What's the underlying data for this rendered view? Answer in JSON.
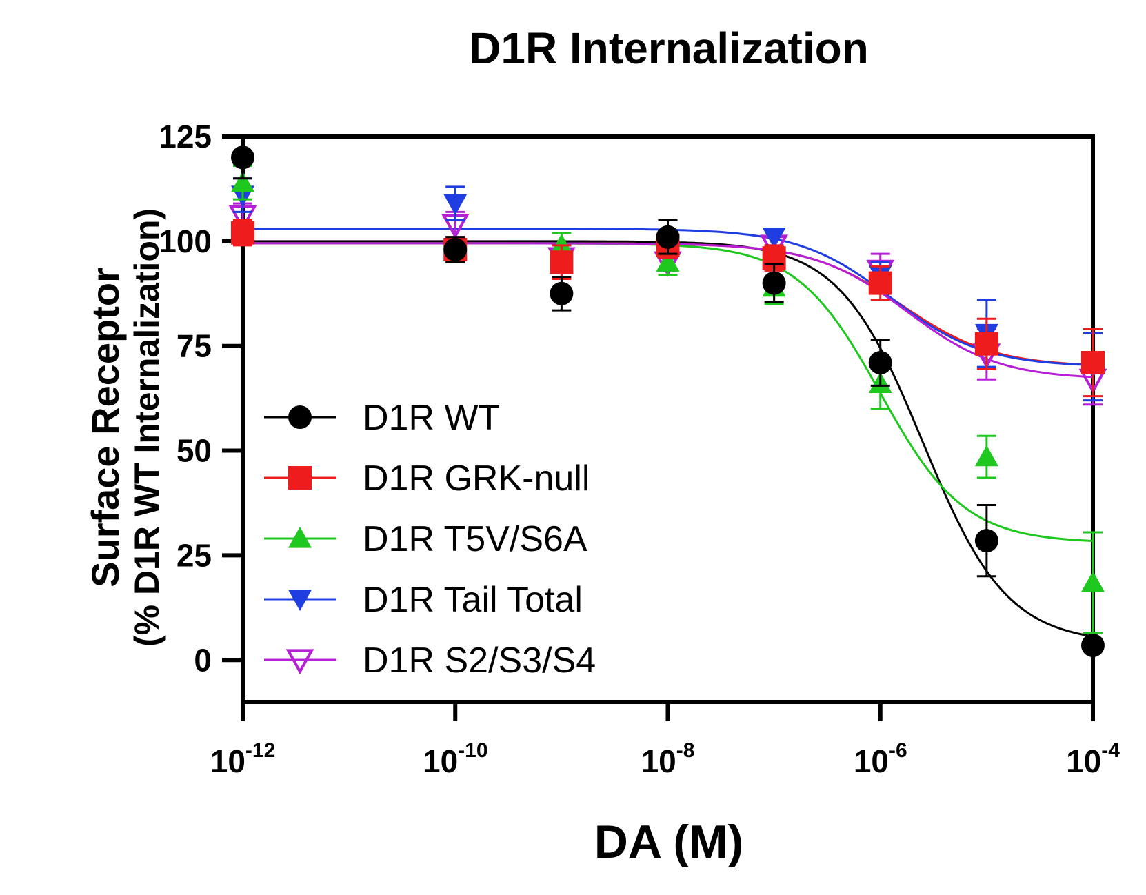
{
  "chart_data": {
    "type": "line",
    "title": "D1R Internalization",
    "xlabel": "DA (M)",
    "ylabel_line1": "Surface Receptor",
    "ylabel_line2": "(% D1R WT Internalization)",
    "xscale": "log",
    "xlim_log10": [
      -12,
      -4
    ],
    "ylim": [
      -10,
      125
    ],
    "xticks": [
      {
        "base": "10",
        "exp": "-12",
        "log10": -12
      },
      {
        "base": "10",
        "exp": "-10",
        "log10": -10
      },
      {
        "base": "10",
        "exp": "-8",
        "log10": -8
      },
      {
        "base": "10",
        "exp": "-6",
        "log10": -6
      },
      {
        "base": "10",
        "exp": "-4",
        "log10": -4
      }
    ],
    "yticks": [
      0,
      25,
      50,
      75,
      100,
      125
    ],
    "legend_position": "lower-left",
    "x_log10": [
      -12,
      -10,
      -9,
      -8,
      -7,
      -6,
      -5,
      -4
    ],
    "series": [
      {
        "name": "D1R WT",
        "color": "#000000",
        "marker": "circle",
        "values": [
          120,
          98,
          87.5,
          101,
          90,
          71,
          28.5,
          3.5
        ],
        "errors": [
          5,
          3,
          4,
          4,
          4.5,
          5.5,
          8.5,
          0
        ],
        "fit": {
          "top": 100,
          "bottom": 4,
          "log_ec50": -5.6,
          "hill": 1.1
        }
      },
      {
        "name": "D1R GRK-null",
        "color": "#ee1c1c",
        "marker": "square",
        "values": [
          102,
          98,
          95,
          99,
          96,
          90,
          75.5,
          71
        ],
        "errors": [
          3,
          3,
          4,
          3,
          3,
          4,
          6,
          8
        ],
        "fit": {
          "top": 99.5,
          "bottom": 70,
          "log_ec50": -5.8,
          "hill": 1.0
        }
      },
      {
        "name": "D1R T5V/S6A",
        "color": "#1ec81e",
        "marker": "triangle-up",
        "values": [
          114,
          98,
          99,
          95,
          89,
          66,
          48.5,
          18.5
        ],
        "errors": [
          4,
          2.5,
          3,
          3,
          4,
          6,
          5,
          12
        ],
        "fit": {
          "top": 99.5,
          "bottom": 28,
          "log_ec50": -6.0,
          "hill": 1.1
        }
      },
      {
        "name": "D1R Tail Total",
        "color": "#1f3de0",
        "marker": "triangle-down",
        "values": [
          111,
          109,
          95,
          96,
          101,
          92,
          78,
          70
        ],
        "errors": [
          4,
          4,
          4,
          3,
          2,
          3,
          8,
          8
        ],
        "fit": {
          "top": 103,
          "bottom": 70,
          "log_ec50": -5.9,
          "hill": 1.0
        }
      },
      {
        "name": "D1R S2/S3/S4",
        "color": "#b51fd6",
        "marker": "triangle-down-open",
        "values": [
          106,
          104,
          96,
          95,
          99,
          93,
          73,
          67
        ],
        "errors": [
          3,
          3,
          3,
          3,
          2,
          4,
          6,
          6
        ],
        "fit": {
          "top": 99.5,
          "bottom": 67,
          "log_ec50": -5.75,
          "hill": 1.0
        }
      }
    ]
  }
}
